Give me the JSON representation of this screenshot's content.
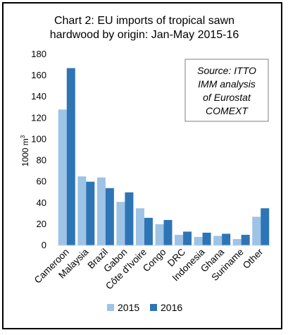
{
  "chart_data": {
    "type": "bar",
    "title": [
      "Chart 2: EU imports of tropical sawn",
      "hardwood by origin: Jan-May 2015-16"
    ],
    "ylabel": "1000 m",
    "ylabel_superscript": "3",
    "ylim": [
      0,
      180
    ],
    "yticks": [
      "0",
      "20",
      "40",
      "60",
      "80",
      "100",
      "120",
      "140",
      "160",
      "180"
    ],
    "grid": false,
    "legend_position": "bottom",
    "categories": [
      "Cameroon",
      "Malaysia",
      "Brazil",
      "Gabon",
      "Côte d'Ivoire",
      "Congo",
      "DRC",
      "Indonesia",
      "Ghana",
      "Suriname",
      "Other"
    ],
    "series": [
      {
        "name": "2015",
        "color": "#9dc3e6",
        "values": [
          128,
          65,
          64,
          41,
          35,
          20,
          10,
          8,
          9,
          6,
          27
        ]
      },
      {
        "name": "2016",
        "color": "#2e75b6",
        "values": [
          167,
          60,
          54,
          50,
          26,
          24,
          13,
          12,
          11,
          10,
          35
        ]
      }
    ],
    "source_note": [
      "Source: ITTO",
      "IMM analysis",
      "of Eurostat",
      "COMEXT"
    ]
  }
}
